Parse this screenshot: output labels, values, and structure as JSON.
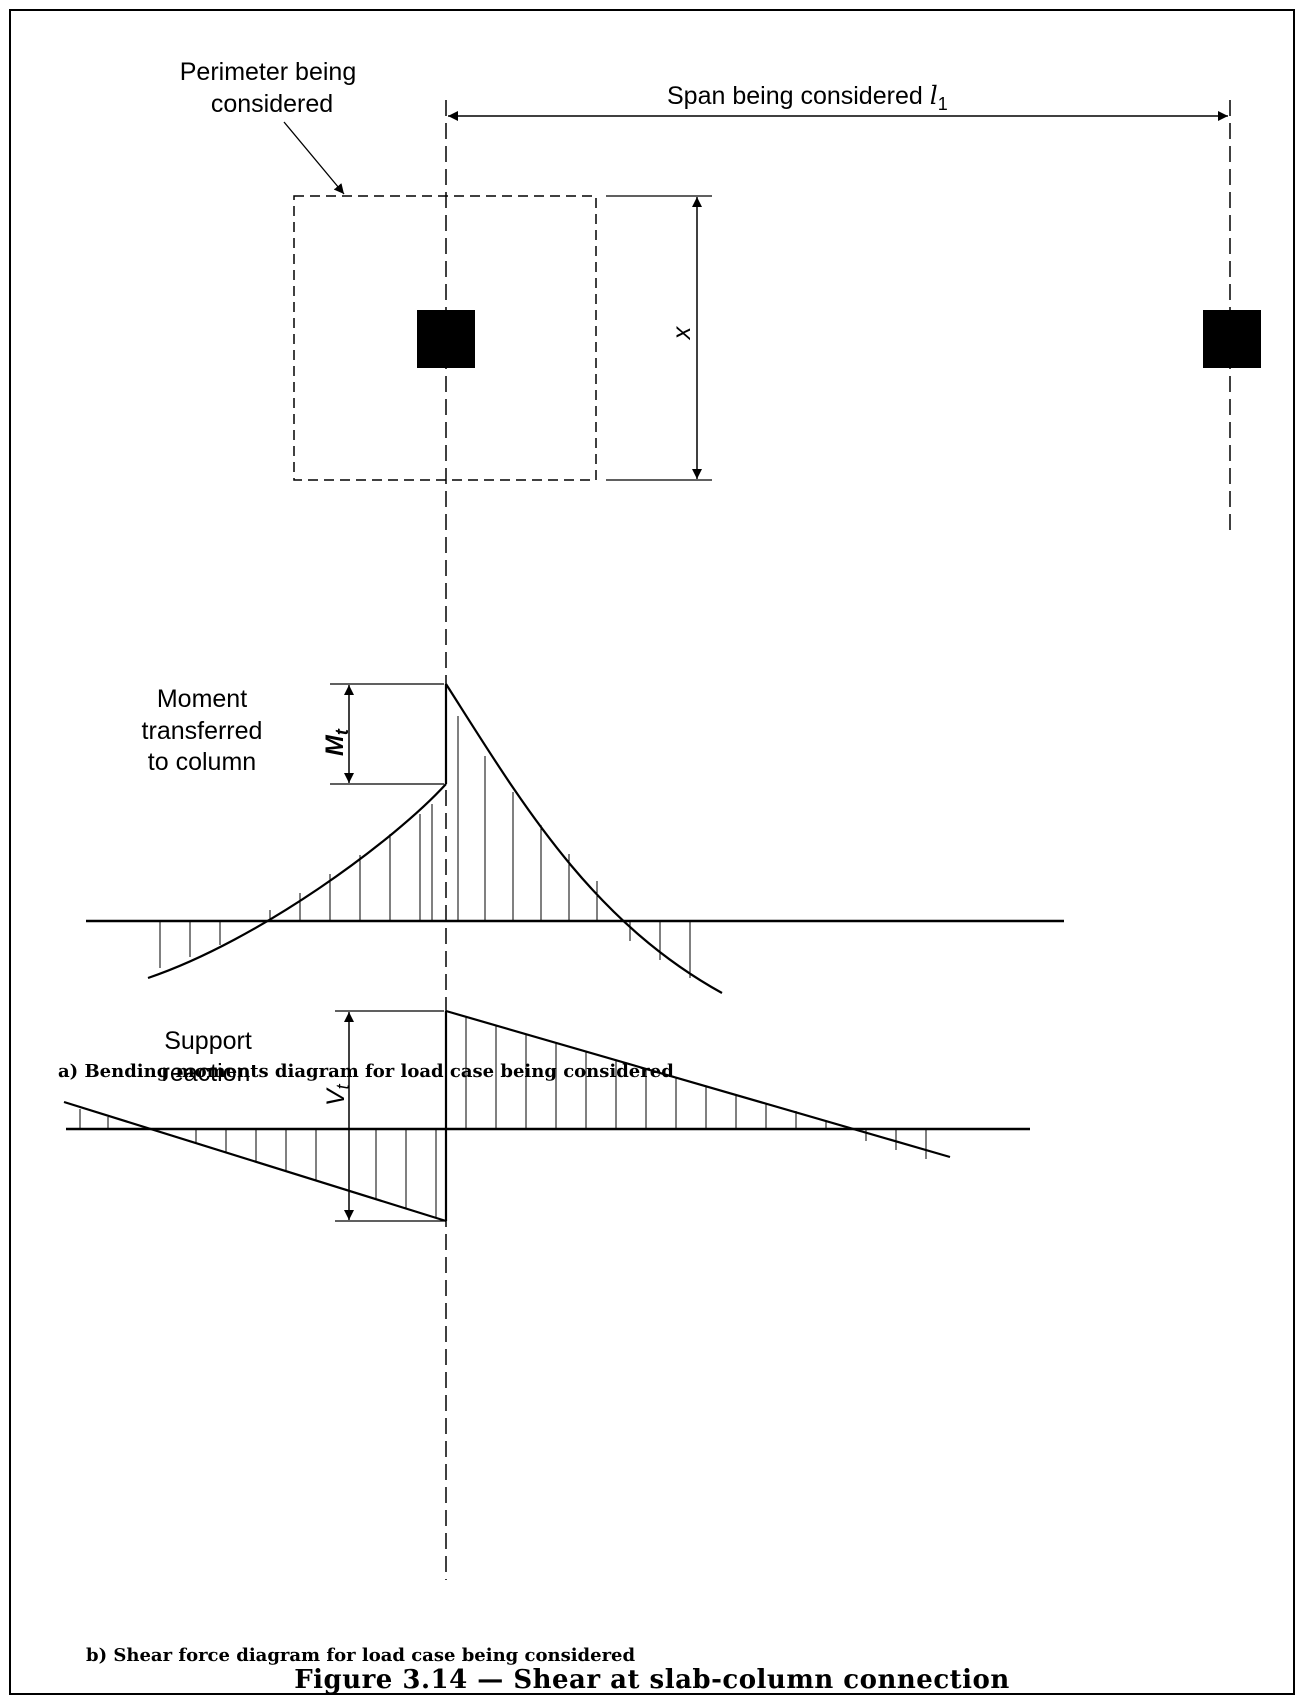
{
  "labels": {
    "perimeter_line1": "Perimeter being",
    "perimeter_line2": "considered",
    "span": "Span being considered",
    "span_symbol": "l",
    "span_subscript": "1",
    "x": "x",
    "moment_line1": "Moment",
    "moment_line2": "transferred",
    "moment_line3": "to column",
    "mt": "M",
    "mt_sub": "t",
    "support_line1": "Support",
    "support_line2": "reaction",
    "vt": "V",
    "vt_sub": "t"
  },
  "captions": {
    "a": "a) Bending moments diagram for load case being considered",
    "b": "b) Shear force diagram for load case being considered"
  },
  "figure_title": "Figure 3.14 — Shear at slab-column connection"
}
